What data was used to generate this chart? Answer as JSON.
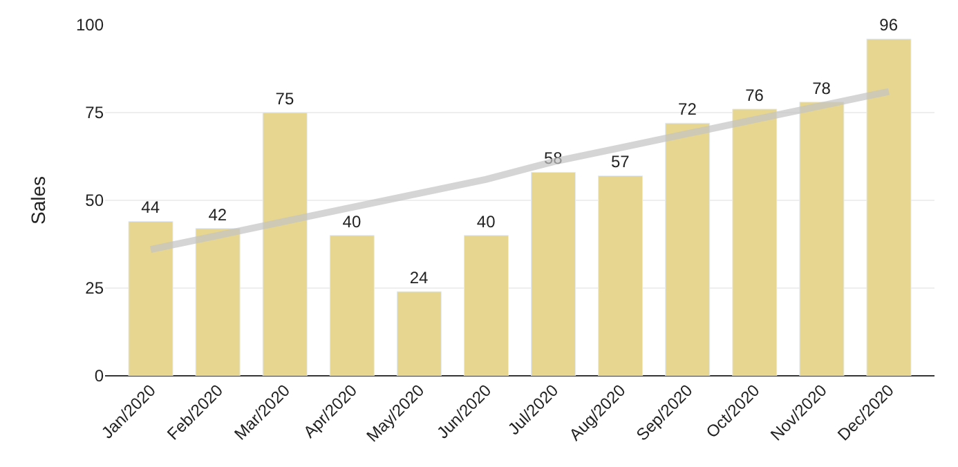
{
  "chart_data": {
    "type": "bar",
    "ylabel": "Sales",
    "categories": [
      "Jan/2020",
      "Feb/2020",
      "Mar/2020",
      "Apr/2020",
      "May/2020",
      "Jun/2020",
      "Jul/2020",
      "Aug/2020",
      "Sep/2020",
      "Oct/2020",
      "Nov/2020",
      "Dec/2020"
    ],
    "series": [
      {
        "color": "#e6d68f",
        "values": [
          44,
          42,
          75,
          40,
          24,
          40,
          58,
          57,
          72,
          76,
          78,
          96
        ],
        "value_labels": [
          "44",
          "42",
          "75",
          "40",
          "24",
          "40",
          "58",
          "57",
          "72",
          "76",
          "78",
          "96"
        ]
      },
      {
        "type": "line",
        "color": "#c4c4c4",
        "values": [
          36,
          40,
          44,
          48,
          52,
          56,
          61,
          65,
          69,
          73,
          77,
          81
        ]
      }
    ],
    "ylim": [
      0,
      100
    ],
    "yticks": [
      0,
      25,
      50,
      75,
      100
    ],
    "grid": "y",
    "legend": false
  }
}
